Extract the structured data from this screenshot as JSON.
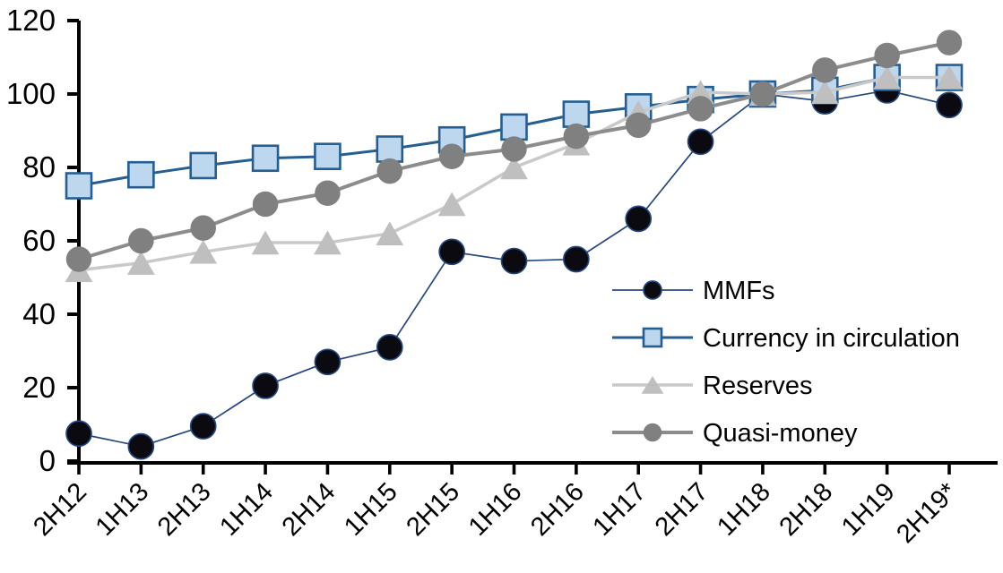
{
  "chart_data": {
    "type": "line",
    "title": "",
    "xlabel": "",
    "ylabel": "",
    "categories": [
      "2H12",
      "1H13",
      "2H13",
      "1H14",
      "2H14",
      "1H15",
      "2H15",
      "1H16",
      "2H16",
      "1H17",
      "2H17",
      "1H18",
      "2H18",
      "1H19",
      "2H19*"
    ],
    "series": [
      {
        "name": "MMFs",
        "marker": "circle",
        "marker_fill": "#0a0a10",
        "marker_stroke": "#24477f",
        "line_color": "#24477f",
        "line_width": 1.7,
        "values": [
          7.5,
          4,
          9.5,
          20.5,
          27,
          31,
          57,
          54.5,
          55,
          66,
          87,
          100,
          98,
          101,
          97
        ]
      },
      {
        "name": "Currency in circulation",
        "marker": "square",
        "marker_fill": "#bdd7ee",
        "marker_stroke": "#255e91",
        "line_color": "#255e91",
        "line_width": 3,
        "values": [
          75,
          78,
          80.5,
          82.5,
          83,
          85,
          87.5,
          91,
          94.5,
          96.5,
          98.5,
          100,
          101,
          104.5,
          104.5
        ]
      },
      {
        "name": "Reserves",
        "marker": "triangle",
        "marker_fill": "#bfbfbf",
        "marker_stroke": "none",
        "line_color": "#c9c9c9",
        "line_width": 3.5,
        "values": [
          52,
          54,
          57,
          59.5,
          59.5,
          62,
          70,
          80,
          86.5,
          95,
          100.5,
          100,
          100.5,
          104.5,
          104.5
        ]
      },
      {
        "name": "Quasi-money",
        "marker": "circle",
        "marker_fill": "#808080",
        "marker_stroke": "none",
        "line_color": "#8c8c8c",
        "line_width": 4,
        "values": [
          55,
          60,
          63.5,
          70,
          73,
          79,
          83,
          85,
          88.5,
          91.5,
          96,
          100,
          106.5,
          110.5,
          114
        ]
      }
    ],
    "yticks": [
      0,
      20,
      40,
      60,
      80,
      100,
      120
    ],
    "ylim": [
      0,
      120
    ],
    "grid": false,
    "legend_position": "middle-right",
    "legend_labels": [
      "MMFs",
      "Currency in circulation",
      "Reserves",
      "Quasi-money"
    ]
  },
  "colors": {
    "axis": "#000000",
    "text": "#000000",
    "background": "#ffffff"
  }
}
